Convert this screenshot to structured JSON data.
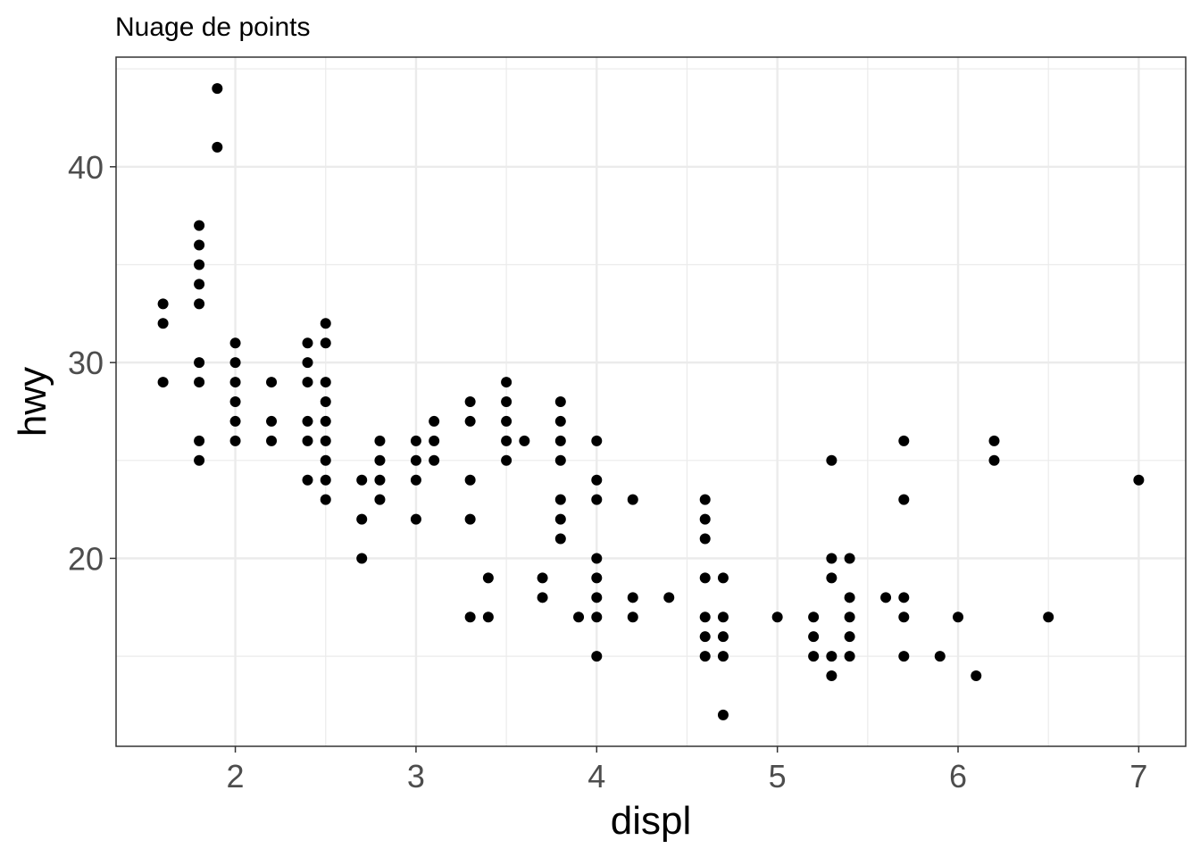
{
  "chart_data": {
    "type": "scatter",
    "title": "Nuage de points",
    "xlabel": "displ",
    "ylabel": "hwy",
    "xlim": [
      1.34,
      7.26
    ],
    "ylim": [
      10.4,
      45.6
    ],
    "x_ticks": [
      2,
      3,
      4,
      5,
      6,
      7
    ],
    "y_ticks": [
      20,
      30,
      40
    ],
    "grid": true,
    "colors": {
      "point": "#000000",
      "grid": "#ebebeb",
      "panel_border": "#333333",
      "tick_text": "#4d4d4d"
    },
    "points": [
      [
        1.6,
        33
      ],
      [
        1.6,
        32
      ],
      [
        1.6,
        29
      ],
      [
        1.8,
        37
      ],
      [
        1.8,
        36
      ],
      [
        1.8,
        35
      ],
      [
        1.8,
        34
      ],
      [
        1.8,
        33
      ],
      [
        1.8,
        30
      ],
      [
        1.8,
        29
      ],
      [
        1.8,
        26
      ],
      [
        1.8,
        25
      ],
      [
        1.9,
        44
      ],
      [
        1.9,
        41
      ],
      [
        2.0,
        31
      ],
      [
        2.0,
        30
      ],
      [
        2.0,
        29
      ],
      [
        2.0,
        28
      ],
      [
        2.0,
        27
      ],
      [
        2.0,
        26
      ],
      [
        2.2,
        29
      ],
      [
        2.2,
        27
      ],
      [
        2.2,
        26
      ],
      [
        2.4,
        31
      ],
      [
        2.4,
        30
      ],
      [
        2.4,
        29
      ],
      [
        2.4,
        27
      ],
      [
        2.4,
        26
      ],
      [
        2.4,
        24
      ],
      [
        2.5,
        32
      ],
      [
        2.5,
        31
      ],
      [
        2.5,
        29
      ],
      [
        2.5,
        28
      ],
      [
        2.5,
        27
      ],
      [
        2.5,
        26
      ],
      [
        2.5,
        25
      ],
      [
        2.5,
        24
      ],
      [
        2.5,
        23
      ],
      [
        2.7,
        24
      ],
      [
        2.7,
        22
      ],
      [
        2.7,
        20
      ],
      [
        2.8,
        26
      ],
      [
        2.8,
        25
      ],
      [
        2.8,
        24
      ],
      [
        2.8,
        23
      ],
      [
        3.0,
        26
      ],
      [
        3.0,
        25
      ],
      [
        3.0,
        24
      ],
      [
        3.0,
        22
      ],
      [
        3.1,
        27
      ],
      [
        3.1,
        26
      ],
      [
        3.1,
        25
      ],
      [
        3.3,
        28
      ],
      [
        3.3,
        27
      ],
      [
        3.3,
        24
      ],
      [
        3.3,
        22
      ],
      [
        3.3,
        17
      ],
      [
        3.4,
        19
      ],
      [
        3.4,
        17
      ],
      [
        3.5,
        29
      ],
      [
        3.5,
        28
      ],
      [
        3.5,
        27
      ],
      [
        3.5,
        26
      ],
      [
        3.5,
        25
      ],
      [
        3.6,
        26
      ],
      [
        3.7,
        19
      ],
      [
        3.7,
        18
      ],
      [
        3.8,
        28
      ],
      [
        3.8,
        27
      ],
      [
        3.8,
        26
      ],
      [
        3.8,
        25
      ],
      [
        3.8,
        23
      ],
      [
        3.8,
        22
      ],
      [
        3.8,
        21
      ],
      [
        3.9,
        17
      ],
      [
        4.0,
        26
      ],
      [
        4.0,
        24
      ],
      [
        4.0,
        23
      ],
      [
        4.0,
        20
      ],
      [
        4.0,
        19
      ],
      [
        4.0,
        18
      ],
      [
        4.0,
        17
      ],
      [
        4.0,
        15
      ],
      [
        4.2,
        23
      ],
      [
        4.2,
        18
      ],
      [
        4.2,
        17
      ],
      [
        4.4,
        18
      ],
      [
        4.6,
        23
      ],
      [
        4.6,
        22
      ],
      [
        4.6,
        21
      ],
      [
        4.6,
        19
      ],
      [
        4.6,
        17
      ],
      [
        4.6,
        16
      ],
      [
        4.6,
        15
      ],
      [
        4.7,
        19
      ],
      [
        4.7,
        17
      ],
      [
        4.7,
        16
      ],
      [
        4.7,
        15
      ],
      [
        4.7,
        12
      ],
      [
        5.0,
        17
      ],
      [
        5.2,
        17
      ],
      [
        5.2,
        16
      ],
      [
        5.2,
        15
      ],
      [
        5.3,
        25
      ],
      [
        5.3,
        20
      ],
      [
        5.3,
        19
      ],
      [
        5.3,
        15
      ],
      [
        5.3,
        14
      ],
      [
        5.4,
        20
      ],
      [
        5.4,
        18
      ],
      [
        5.4,
        17
      ],
      [
        5.4,
        16
      ],
      [
        5.4,
        15
      ],
      [
        5.6,
        18
      ],
      [
        5.7,
        26
      ],
      [
        5.7,
        23
      ],
      [
        5.7,
        18
      ],
      [
        5.7,
        17
      ],
      [
        5.7,
        15
      ],
      [
        5.9,
        15
      ],
      [
        6.0,
        17
      ],
      [
        6.1,
        14
      ],
      [
        6.2,
        26
      ],
      [
        6.2,
        25
      ],
      [
        6.5,
        17
      ],
      [
        7.0,
        24
      ]
    ]
  }
}
